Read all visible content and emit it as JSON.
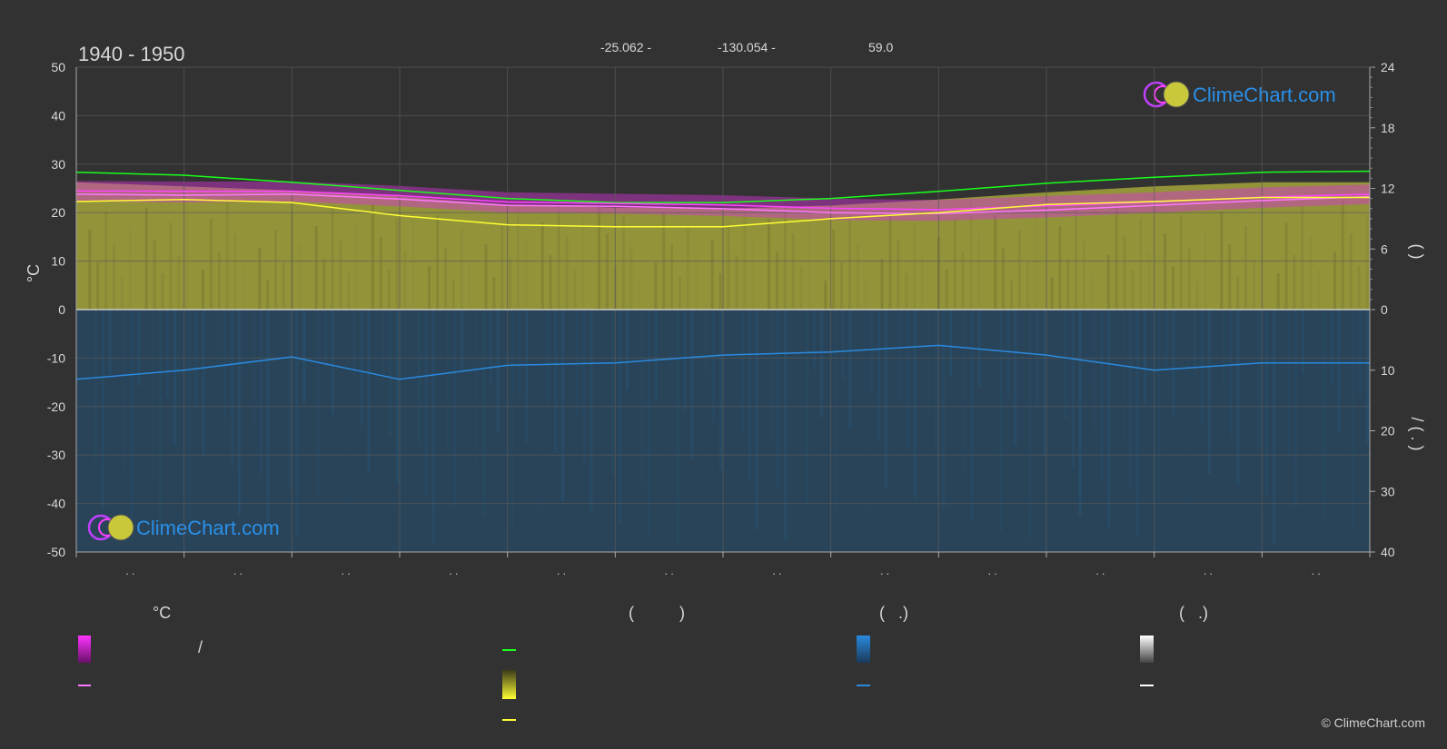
{
  "header": {
    "period": "1940 - 1950",
    "lat": "-25.062 -",
    "lon": "-130.054 -",
    "elev": "59.0"
  },
  "axes": {
    "left_unit": "°C",
    "right_upper_label": "(    )",
    "right_lower_label": "/     ( . )"
  },
  "brand": "ClimeChart.com",
  "copyright": "© ClimeChart.com",
  "legend": {
    "col1_title": "°C",
    "col1_row1": "/",
    "col2_title": "(          )",
    "col3_title": "(   .)",
    "col4_title": "(   .)"
  },
  "colors": {
    "background": "#323232",
    "grid": "#5a5a5a",
    "daylight": "#1aff1a",
    "sunshine": "#ffff33",
    "sunshine_fill": "#a5a53c",
    "temp_band": "#d633d6",
    "temp_mean": "#ff77ff",
    "precip": "#2a8ae0",
    "precip_fill": "#1e5a8a",
    "brand": "#2a90e8"
  },
  "chart_data": {
    "type": "line",
    "x": [
      1,
      2,
      3,
      4,
      5,
      6,
      7,
      8,
      9,
      10,
      11,
      12,
      13
    ],
    "xlabel": "",
    "tick_labels": [
      ". .",
      ". .",
      ". .",
      ". .",
      ". .",
      ". .",
      ". .",
      ". .",
      ". .",
      ". .",
      ". .",
      ". ."
    ],
    "left_axis": {
      "ylim": [
        -50,
        50
      ],
      "ticks": [
        50,
        40,
        30,
        20,
        10,
        0,
        -10,
        -20,
        -30,
        -40,
        -50
      ],
      "ylabel": "°C"
    },
    "right_axis_sun": {
      "ylim": [
        0,
        24
      ],
      "ticks": [
        24,
        18,
        12,
        6,
        0
      ]
    },
    "right_axis_precip": {
      "ylim": [
        0,
        40
      ],
      "ticks": [
        0,
        10,
        20,
        30,
        40
      ]
    },
    "grid": true,
    "series": [
      {
        "key": "daylight",
        "axis": "sun_hours",
        "values": [
          13.6,
          13.3,
          12.6,
          11.8,
          11.0,
          10.6,
          10.6,
          11.0,
          11.7,
          12.5,
          13.1,
          13.6,
          13.7
        ]
      },
      {
        "key": "sunshine",
        "axis": "sun_hours",
        "values": [
          10.7,
          10.9,
          10.6,
          9.3,
          8.4,
          8.2,
          8.2,
          9.0,
          9.6,
          10.4,
          10.7,
          11.1,
          11.1
        ]
      },
      {
        "key": "temp_mean",
        "axis": "temp",
        "values": [
          23.8,
          23.6,
          23.8,
          22.8,
          21.5,
          21.3,
          20.8,
          20.0,
          19.8,
          20.5,
          21.5,
          22.5,
          23.3
        ]
      },
      {
        "key": "temp_max",
        "axis": "temp",
        "values": [
          24.5,
          24.4,
          24.4,
          23.5,
          22.2,
          21.9,
          21.6,
          20.9,
          20.6,
          21.4,
          22.2,
          23.2,
          23.8
        ]
      },
      {
        "key": "precip_mean",
        "axis": "precip_mm",
        "values": [
          11.5,
          10.0,
          7.8,
          11.5,
          9.2,
          8.8,
          7.5,
          7.0,
          5.9,
          7.5,
          10.0,
          8.8,
          8.8
        ]
      },
      {
        "key": "sun_area_top",
        "axis": "sun_hours",
        "values": [
          12.6,
          12.2,
          11.8,
          11.2,
          10.4,
          10.1,
          10.0,
          10.3,
          10.9,
          11.6,
          12.2,
          12.6,
          12.6
        ]
      }
    ]
  }
}
